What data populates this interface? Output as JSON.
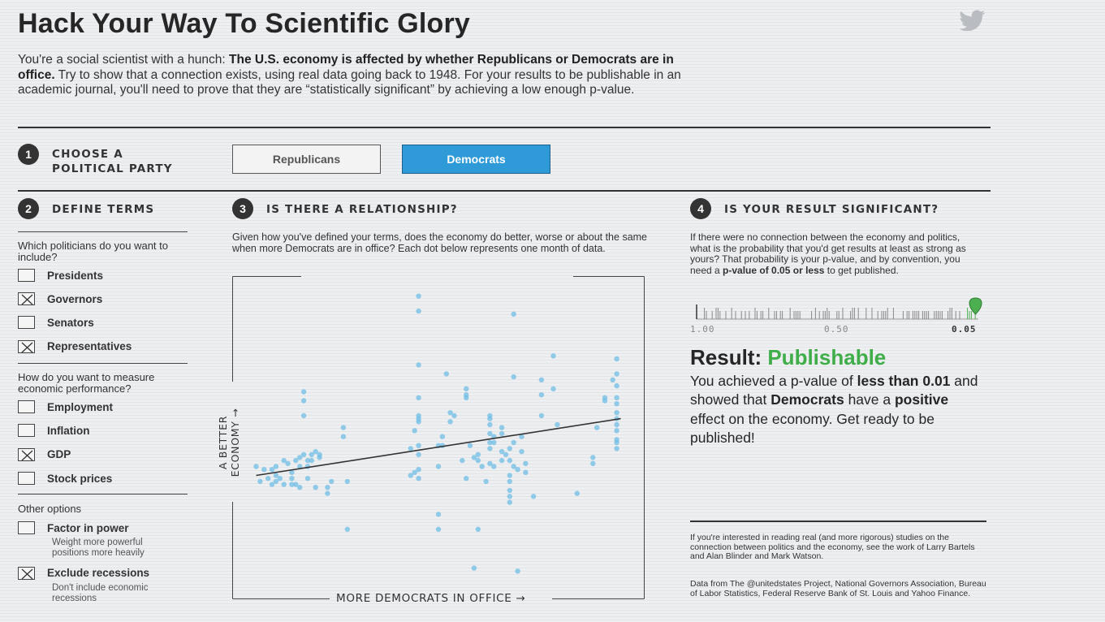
{
  "title": "Hack Your Way To Scientific Glory",
  "intro": {
    "p1": "You're a social scientist with a hunch: ",
    "bold": "The U.S. economy is affected by whether Republicans or Democrats are in office.",
    "p2": " Try to show that a connection exists, using real data going back to 1948. For your results to be publishable in an academic journal, you'll need to prove that they are “statistically significant” by achieving a low enough p-value."
  },
  "step1": {
    "num": "1",
    "label_line1": "Choose a",
    "label_line2": "political party"
  },
  "parties": {
    "republicans": "Republicans",
    "democrats": "Democrats",
    "selected": "Democrats"
  },
  "step2": {
    "num": "2",
    "label": "Define terms",
    "q1": "Which politicians do you want to include?",
    "politicians": [
      {
        "label": "Presidents",
        "checked": false
      },
      {
        "label": "Governors",
        "checked": true
      },
      {
        "label": "Senators",
        "checked": false
      },
      {
        "label": "Representatives",
        "checked": true
      }
    ],
    "q2": "How do you want to measure economic performance?",
    "measures": [
      {
        "label": "Employment",
        "checked": false
      },
      {
        "label": "Inflation",
        "checked": false
      },
      {
        "label": "GDP",
        "checked": true
      },
      {
        "label": "Stock prices",
        "checked": false
      }
    ],
    "q3": "Other options",
    "options": [
      {
        "label": "Factor in power",
        "checked": false,
        "note": "Weight more powerful positions more heavily"
      },
      {
        "label": "Exclude recessions",
        "checked": true,
        "note": "Don't include economic recessions"
      }
    ]
  },
  "step3": {
    "num": "3",
    "label": "Is there a relationship?",
    "desc": "Given how you've defined your terms, does the economy do better, worse or about the same when more Democrats are in office? Each dot below represents one month of data.",
    "y_axis_label": "A BETTER ECONOMY →",
    "x_axis_label": "MORE DEMOCRATS IN OFFICE →"
  },
  "chart_data": {
    "type": "scatter",
    "xlabel": "MORE DEMOCRATS IN OFFICE",
    "ylabel": "A BETTER ECONOMY",
    "xlim": [
      0,
      100
    ],
    "ylim": [
      0,
      100
    ],
    "trendline": {
      "x": [
        4,
        96
      ],
      "y": [
        36,
        55
      ]
    },
    "color": "#6fbde6",
    "points": [
      [
        45,
        96
      ],
      [
        45,
        91
      ],
      [
        69,
        90
      ],
      [
        79,
        76
      ],
      [
        95,
        75
      ],
      [
        45,
        73
      ],
      [
        52,
        70
      ],
      [
        69,
        69
      ],
      [
        76,
        68
      ],
      [
        95,
        70
      ],
      [
        94,
        68
      ],
      [
        95,
        66
      ],
      [
        16,
        64
      ],
      [
        57,
        65
      ],
      [
        57,
        63
      ],
      [
        79,
        65
      ],
      [
        92,
        62
      ],
      [
        95,
        62
      ],
      [
        45,
        62
      ],
      [
        16,
        61
      ],
      [
        57,
        62
      ],
      [
        76,
        63
      ],
      [
        16,
        56
      ],
      [
        45,
        56
      ],
      [
        92,
        61
      ],
      [
        95,
        60
      ],
      [
        45,
        55
      ],
      [
        53,
        57
      ],
      [
        63,
        56
      ],
      [
        95,
        57
      ],
      [
        95,
        55
      ],
      [
        54,
        56
      ],
      [
        63,
        55
      ],
      [
        76,
        56
      ],
      [
        45,
        54
      ],
      [
        53,
        54
      ],
      [
        80,
        53
      ],
      [
        95,
        53
      ],
      [
        26,
        52
      ],
      [
        44,
        51
      ],
      [
        63,
        53
      ],
      [
        66,
        52
      ],
      [
        90,
        52
      ],
      [
        95,
        51
      ],
      [
        26,
        49
      ],
      [
        51,
        49
      ],
      [
        63,
        50
      ],
      [
        66,
        50
      ],
      [
        64,
        49
      ],
      [
        63,
        47
      ],
      [
        69,
        47
      ],
      [
        95,
        47
      ],
      [
        95,
        45
      ],
      [
        45,
        46
      ],
      [
        51,
        46
      ],
      [
        64,
        47
      ],
      [
        71,
        49
      ],
      [
        58,
        46
      ],
      [
        63,
        45
      ],
      [
        43,
        45
      ],
      [
        50,
        46
      ],
      [
        68,
        45
      ],
      [
        95,
        48
      ],
      [
        19,
        44
      ],
      [
        18,
        43
      ],
      [
        16,
        43
      ],
      [
        20,
        42
      ],
      [
        18,
        41
      ],
      [
        45,
        43
      ],
      [
        60,
        43
      ],
      [
        66,
        44
      ],
      [
        67,
        43
      ],
      [
        71,
        44
      ],
      [
        20,
        43
      ],
      [
        15,
        42
      ],
      [
        17,
        41
      ],
      [
        59,
        42
      ],
      [
        68,
        41
      ],
      [
        60,
        41
      ],
      [
        66,
        41
      ],
      [
        11,
        41
      ],
      [
        12,
        40
      ],
      [
        14,
        41
      ],
      [
        56,
        41
      ],
      [
        63,
        40
      ],
      [
        64,
        39
      ],
      [
        72,
        40
      ],
      [
        89,
        40
      ],
      [
        89,
        42
      ],
      [
        9,
        39
      ],
      [
        15,
        39
      ],
      [
        17,
        39
      ],
      [
        50,
        39
      ],
      [
        61,
        39
      ],
      [
        69,
        39
      ],
      [
        4,
        39
      ],
      [
        6,
        38
      ],
      [
        8,
        38
      ],
      [
        13,
        37
      ],
      [
        45,
        38
      ],
      [
        44,
        37
      ],
      [
        70,
        38
      ],
      [
        72,
        37
      ],
      [
        43,
        36
      ],
      [
        45,
        35
      ],
      [
        57,
        35
      ],
      [
        68,
        36
      ],
      [
        62,
        34
      ],
      [
        9,
        36
      ],
      [
        5,
        34
      ],
      [
        7,
        35
      ],
      [
        10,
        35
      ],
      [
        13,
        35
      ],
      [
        14,
        33
      ],
      [
        17,
        35
      ],
      [
        23,
        34
      ],
      [
        68,
        34
      ],
      [
        9,
        34
      ],
      [
        8,
        33
      ],
      [
        19,
        32
      ],
      [
        22,
        32
      ],
      [
        27,
        34
      ],
      [
        11,
        33
      ],
      [
        13,
        33
      ],
      [
        15,
        32
      ],
      [
        22,
        30
      ],
      [
        68,
        31
      ],
      [
        68,
        29
      ],
      [
        74,
        29
      ],
      [
        85,
        30
      ],
      [
        68,
        27
      ],
      [
        50,
        23
      ],
      [
        27,
        18
      ],
      [
        50,
        18
      ],
      [
        60,
        18
      ],
      [
        59,
        5
      ],
      [
        70,
        4
      ]
    ]
  },
  "step4": {
    "num": "4",
    "label": "Is your result significant?",
    "desc_part1": "If there were no connection between the economy and politics, what is the probability that you'd get results at least as strong as yours? That probability is your p-value, and by convention, you need a ",
    "desc_bold": "p-value of 0.05 or less",
    "desc_part2": " to get published.",
    "pvalue_ticks": [
      "1.00",
      "0.50",
      "0.05"
    ],
    "pvalue_marker": 0.01
  },
  "result": {
    "label": "Result: ",
    "status": "Publishable",
    "t1": "You achieved a p-value of ",
    "b1": "less than 0.01",
    "t2": " and showed that ",
    "b2": "Democrats",
    "t3": " have a ",
    "b3": "positive",
    "t4": " effect on the economy. Get ready to be published!"
  },
  "footnotes": {
    "f1": "If you're interested in reading real (and more rigorous) studies on the connection between politics and the economy, see the work of Larry Bartels and Alan Blinder and Mark Watson.",
    "f2": "Data from The @unitedstates Project, National Governors Association, Bureau of Labor Statistics, Federal Reserve Bank of St. Louis and Yahoo Finance."
  },
  "icons": {
    "share": "twitter-icon"
  }
}
